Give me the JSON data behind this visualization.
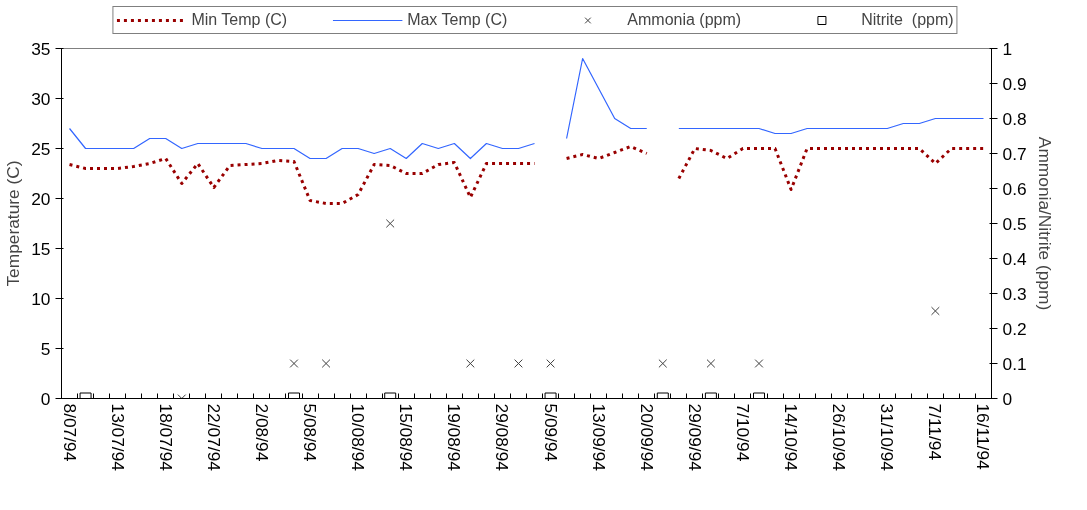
{
  "chart_data": {
    "type": "line",
    "ylabel": "Temperature (C)",
    "y2label": "Ammonia/Nitrite (ppm)",
    "categories": [
      "8/07/94",
      null,
      null,
      "13/07/94",
      null,
      null,
      "18/07/94",
      null,
      null,
      "22/07/94",
      null,
      null,
      "2/08/94",
      null,
      null,
      "5/08/94",
      null,
      null,
      "10/08/94",
      null,
      null,
      "15/08/94",
      null,
      null,
      "19/08/94",
      null,
      null,
      "29/08/94",
      null,
      null,
      "5/09/94",
      null,
      null,
      "13/09/94",
      null,
      null,
      "20/09/94",
      null,
      null,
      "29/09/94",
      null,
      null,
      "7/10/94",
      null,
      null,
      "14/10/94",
      null,
      null,
      "26/10/94",
      null,
      null,
      "31/10/94",
      null,
      null,
      "7/11/94",
      null,
      null,
      "16/11/94"
    ],
    "series": [
      {
        "name": "Min Temp (C)",
        "color": "#990000",
        "line_style": "dotted",
        "marker": "none",
        "values": [
          23.4,
          23,
          23,
          23,
          23.2,
          23.5,
          24,
          21.5,
          23.5,
          21.1,
          23.3,
          23.4,
          23.5,
          23.8,
          23.7,
          19.8,
          19.5,
          19.5,
          20.4,
          23.4,
          23.3,
          22.5,
          22.5,
          23.4,
          23.6,
          20.1,
          23.5,
          23.5,
          23.5,
          23.5,
          null,
          24,
          24.4,
          24,
          24.6,
          25.2,
          24.5,
          null,
          22,
          25,
          24.8,
          24,
          25,
          25,
          25,
          20.9,
          25,
          25,
          25,
          25,
          25,
          25,
          25,
          25,
          23.5,
          25,
          25,
          25
        ]
      },
      {
        "name": "Max Temp (C)",
        "color": "#3366ff",
        "line_style": "solid",
        "marker": "none",
        "values": [
          27,
          25,
          25,
          25,
          25,
          26,
          26,
          25,
          25.5,
          25.5,
          25.5,
          25.5,
          25,
          25,
          25,
          24,
          24,
          25,
          25,
          24.5,
          25,
          24,
          25.5,
          25,
          25.5,
          24,
          25.5,
          25,
          25,
          25.5,
          null,
          26,
          34,
          31,
          28,
          27,
          27,
          null,
          27,
          27,
          27,
          27,
          27,
          27,
          26.5,
          26.5,
          27,
          27,
          27,
          27,
          27,
          27,
          27.5,
          27.5,
          28,
          28,
          28,
          28
        ]
      },
      {
        "name": "Ammonia (ppm)",
        "type": "scatter",
        "axis": "y2",
        "color": "#404040",
        "marker": "cross",
        "values": [
          null,
          null,
          null,
          null,
          null,
          null,
          null,
          0,
          null,
          null,
          null,
          null,
          null,
          null,
          0.1,
          null,
          0.1,
          null,
          null,
          null,
          0.5,
          null,
          null,
          null,
          null,
          0.1,
          null,
          null,
          0.1,
          null,
          0.1,
          null,
          null,
          null,
          null,
          null,
          null,
          0.1,
          null,
          null,
          0.1,
          null,
          null,
          0.1,
          null,
          null,
          null,
          null,
          null,
          null,
          null,
          null,
          null,
          null,
          0.25,
          null,
          null,
          null
        ]
      },
      {
        "name": "Nitrite  (ppm)",
        "type": "scatter",
        "axis": "y2",
        "color": "#000000",
        "marker": "square",
        "values": [
          null,
          0,
          null,
          null,
          null,
          null,
          null,
          null,
          null,
          null,
          null,
          null,
          null,
          null,
          0,
          null,
          null,
          null,
          null,
          null,
          0,
          null,
          null,
          null,
          null,
          null,
          null,
          null,
          null,
          null,
          0,
          null,
          null,
          null,
          null,
          null,
          null,
          0,
          null,
          null,
          0,
          null,
          null,
          0,
          null,
          null,
          null,
          null,
          null,
          null,
          null,
          null,
          null,
          null,
          null,
          null,
          null,
          null
        ]
      }
    ],
    "ylim": [
      0,
      35
    ],
    "yticks": [
      0,
      5,
      10,
      15,
      20,
      25,
      30,
      35
    ],
    "y2lim": [
      0,
      1
    ],
    "y2ticks": [
      0,
      0.1,
      0.2,
      0.3,
      0.4,
      0.5,
      0.6,
      0.7,
      0.8,
      0.9,
      1
    ],
    "grid": false,
    "legend": "top"
  }
}
